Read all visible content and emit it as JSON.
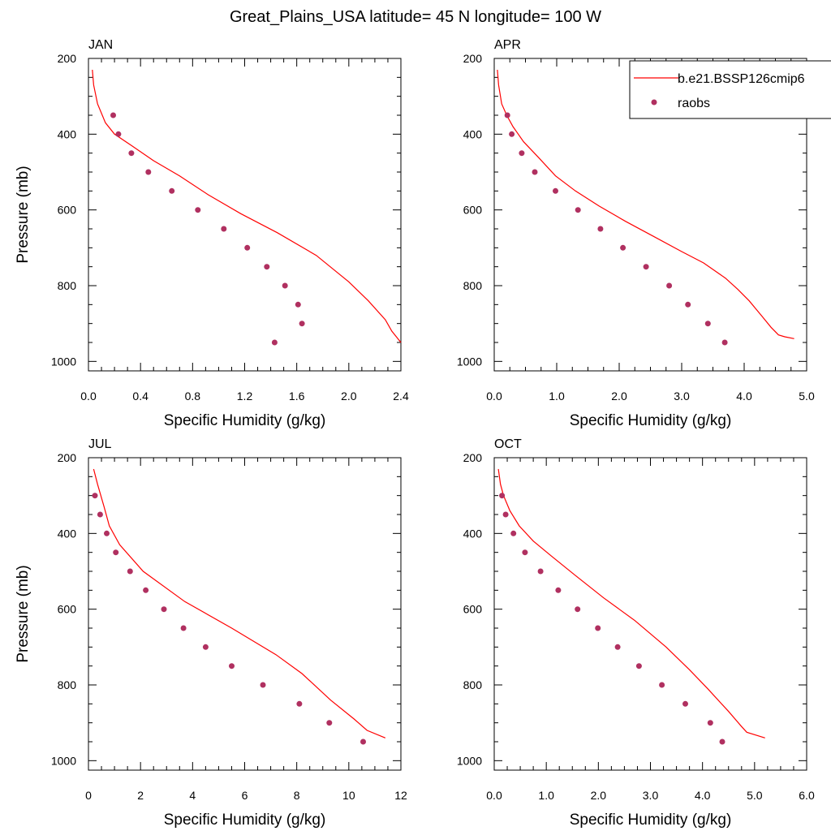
{
  "suptitle": "Great_Plains_USA  latitude= 45 N longitude= 100 W",
  "colors": {
    "model": "#ff0000",
    "obs": "#b03060"
  },
  "legend": {
    "model": "b.e21.BSSP126cmip6",
    "obs": "raobs"
  },
  "chart_data": [
    {
      "type": "line",
      "title": "JAN",
      "xlabel": "Specific Humidity (g/kg)",
      "ylabel": "Pressure (mb)",
      "xlim": [
        0,
        2.4
      ],
      "ylim": [
        1025,
        200
      ],
      "xticks": [
        0,
        0.4,
        0.8,
        1.2,
        1.6,
        2.0,
        2.4
      ],
      "xticklabels": [
        "0.0",
        "0.4",
        "0.8",
        "1.2",
        "1.6",
        "2.0",
        "2.4"
      ],
      "yticks": [
        200,
        400,
        600,
        800,
        1000
      ],
      "model": {
        "x": [
          0.03,
          0.04,
          0.07,
          0.13,
          0.2,
          0.33,
          0.5,
          0.7,
          0.92,
          1.17,
          1.45,
          1.75,
          2.0,
          2.15,
          2.28,
          2.33,
          2.4
        ],
        "y": [
          230,
          270,
          320,
          370,
          400,
          430,
          470,
          510,
          560,
          610,
          660,
          720,
          790,
          840,
          890,
          920,
          950
        ]
      },
      "obs": {
        "x": [
          0.19,
          0.23,
          0.33,
          0.46,
          0.64,
          0.84,
          1.04,
          1.22,
          1.37,
          1.51,
          1.61,
          1.64,
          1.43
        ],
        "y": [
          350,
          400,
          450,
          500,
          550,
          600,
          650,
          700,
          750,
          800,
          850,
          900,
          950
        ]
      }
    },
    {
      "type": "line",
      "title": "APR",
      "xlabel": "Specific Humidity (g/kg)",
      "ylabel": "",
      "xlim": [
        0,
        5.0
      ],
      "ylim": [
        1025,
        200
      ],
      "xticks": [
        0,
        1,
        2,
        3,
        4,
        5
      ],
      "xticklabels": [
        "0.0",
        "1.0",
        "2.0",
        "3.0",
        "4.0",
        "5.0"
      ],
      "yticks": [
        200,
        400,
        600,
        800,
        1000
      ],
      "model": {
        "x": [
          0.05,
          0.07,
          0.12,
          0.2,
          0.3,
          0.47,
          0.7,
          0.98,
          1.3,
          1.68,
          2.1,
          2.55,
          3.0,
          3.35,
          3.7,
          3.9,
          4.08,
          4.28,
          4.43,
          4.55,
          4.65,
          4.8
        ],
        "y": [
          230,
          270,
          320,
          350,
          380,
          420,
          460,
          510,
          550,
          590,
          630,
          670,
          710,
          740,
          780,
          810,
          840,
          880,
          910,
          930,
          935,
          940
        ]
      },
      "obs": {
        "x": [
          0.21,
          0.28,
          0.44,
          0.65,
          0.98,
          1.34,
          1.7,
          2.06,
          2.43,
          2.8,
          3.1,
          3.42,
          3.69
        ],
        "y": [
          350,
          400,
          450,
          500,
          550,
          600,
          650,
          700,
          750,
          800,
          850,
          900,
          950
        ]
      }
    },
    {
      "type": "line",
      "title": "JUL",
      "xlabel": "Specific Humidity (g/kg)",
      "ylabel": "Pressure (mb)",
      "xlim": [
        0,
        12
      ],
      "ylim": [
        1025,
        200
      ],
      "xticks": [
        0,
        2,
        4,
        6,
        8,
        10,
        12
      ],
      "xticklabels": [
        "0",
        "2",
        "4",
        "6",
        "8",
        "10",
        "12"
      ],
      "yticks": [
        200,
        400,
        600,
        800,
        1000
      ],
      "model": {
        "x": [
          0.2,
          0.35,
          0.6,
          0.8,
          1.2,
          2.1,
          3.7,
          5.5,
          7.2,
          8.2,
          9.3,
          10.2,
          10.7,
          11.4
        ],
        "y": [
          230,
          270,
          330,
          380,
          430,
          500,
          580,
          650,
          720,
          770,
          840,
          890,
          920,
          940
        ]
      },
      "obs": {
        "x": [
          0.25,
          0.45,
          0.7,
          1.05,
          1.6,
          2.2,
          2.9,
          3.65,
          4.5,
          5.5,
          6.7,
          8.1,
          9.25,
          10.55
        ],
        "y": [
          300,
          350,
          400,
          450,
          500,
          550,
          600,
          650,
          700,
          750,
          800,
          850,
          900,
          950
        ]
      }
    },
    {
      "type": "line",
      "title": "OCT",
      "xlabel": "Specific Humidity (g/kg)",
      "ylabel": "",
      "xlim": [
        0,
        6.0
      ],
      "ylim": [
        1025,
        200
      ],
      "xticks": [
        0,
        1,
        2,
        3,
        4,
        5,
        6
      ],
      "xticklabels": [
        "0.0",
        "1.0",
        "2.0",
        "3.0",
        "4.0",
        "5.0",
        "6.0"
      ],
      "yticks": [
        200,
        400,
        600,
        800,
        1000
      ],
      "model": {
        "x": [
          0.08,
          0.12,
          0.18,
          0.3,
          0.48,
          0.75,
          1.1,
          1.55,
          2.1,
          2.7,
          3.3,
          3.75,
          4.1,
          4.5,
          4.75,
          4.85,
          5.2
        ],
        "y": [
          230,
          270,
          300,
          340,
          380,
          420,
          460,
          510,
          570,
          630,
          700,
          760,
          810,
          870,
          910,
          925,
          940
        ]
      },
      "obs": {
        "x": [
          0.15,
          0.22,
          0.37,
          0.59,
          0.89,
          1.23,
          1.6,
          1.99,
          2.37,
          2.78,
          3.22,
          3.67,
          4.15,
          4.38
        ],
        "y": [
          300,
          350,
          400,
          450,
          500,
          550,
          600,
          650,
          700,
          750,
          800,
          850,
          900,
          950
        ]
      }
    }
  ]
}
